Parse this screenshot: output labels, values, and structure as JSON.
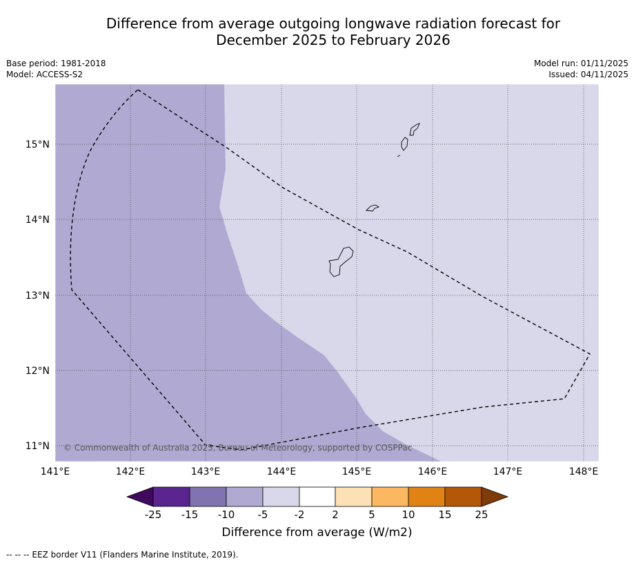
{
  "title_line1": "Difference from average outgoing longwave radiation forecast for",
  "title_line2": "December 2025 to February 2026",
  "base_period": "Base period: 1981-2018",
  "model": "Model: ACCESS-S2",
  "model_run": "Model run: 01/11/2025",
  "issued": "Issued: 04/11/2025",
  "copyright": "© Commonwealth of Australia 2025, Bureau of Meteorology, supported by COSPPac",
  "x_ticks": [
    "141°E",
    "142°E",
    "143°E",
    "144°E",
    "145°E",
    "146°E",
    "147°E",
    "148°E"
  ],
  "y_ticks": [
    "15°N",
    "14°N",
    "13°N",
    "12°N",
    "11°N"
  ],
  "colorbar": {
    "title": "Difference from average (W/m2)",
    "labels": [
      "-25",
      "-15",
      "-10",
      "-5",
      "-2",
      "2",
      "5",
      "10",
      "15",
      "25"
    ],
    "colors": [
      "#3f0a5e",
      "#5b2590",
      "#8073b0",
      "#b0aad2",
      "#d8d8ea",
      "#ffffff",
      "#fde0b6",
      "#fcb761",
      "#e08214",
      "#b35807",
      "#7f3b08"
    ]
  },
  "footnote": "-- -- -- EEZ border V11 (Flanders Marine Institute, 2019)."
}
